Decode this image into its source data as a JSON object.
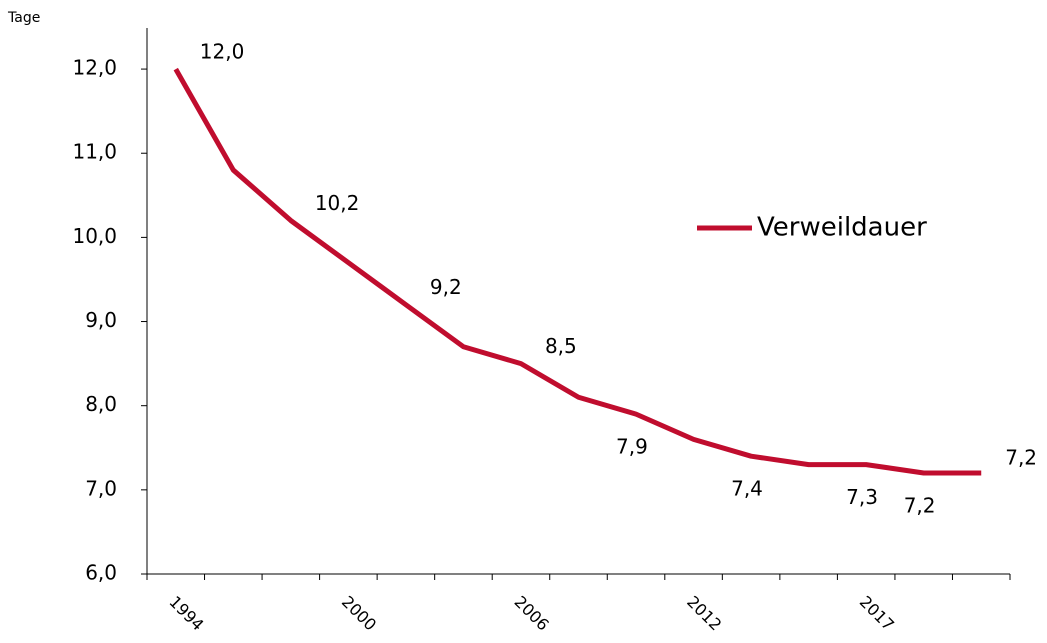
{
  "chart_data": {
    "type": "line",
    "y_axis_label": "Tage",
    "categories": [
      "1994",
      null,
      null,
      "2000",
      null,
      null,
      "2006",
      null,
      null,
      "2012",
      null,
      null,
      "2017",
      null,
      null
    ],
    "series": [
      {
        "name": "Verweildauer",
        "color": "#c00d2e",
        "values": [
          12.0,
          10.8,
          10.2,
          9.7,
          9.2,
          8.7,
          8.5,
          8.1,
          7.9,
          7.6,
          7.4,
          7.3,
          7.3,
          7.2,
          7.2
        ],
        "value_labels": [
          "12,0",
          null,
          "10,2",
          null,
          "9,2",
          null,
          "8,5",
          null,
          "7,9",
          null,
          "7,4",
          null,
          "7,3",
          "7,2",
          "7,2"
        ]
      }
    ],
    "ylim": [
      6,
      12.5
    ],
    "yticks": [
      {
        "value": 6,
        "label": "6,0"
      },
      {
        "value": 7,
        "label": "7,0"
      },
      {
        "value": 8,
        "label": "8,0"
      },
      {
        "value": 9,
        "label": "9,0"
      },
      {
        "value": 10,
        "label": "10,0"
      },
      {
        "value": 11,
        "label": "11,0"
      },
      {
        "value": 12,
        "label": "12,0"
      }
    ],
    "legend": "right"
  }
}
